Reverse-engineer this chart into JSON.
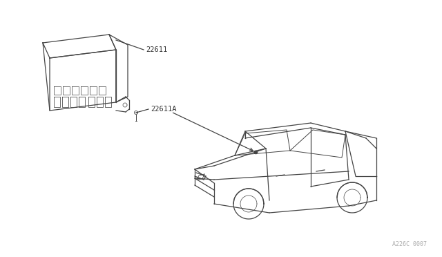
{
  "background_color": "#ffffff",
  "line_color": "#444444",
  "label_color": "#333333",
  "watermark_color": "#aaaaaa",
  "watermark": "A226C 0007",
  "part_label_22611": "22611",
  "part_label_22611A": "22611A",
  "figsize": [
    6.4,
    3.72
  ],
  "dpi": 100
}
